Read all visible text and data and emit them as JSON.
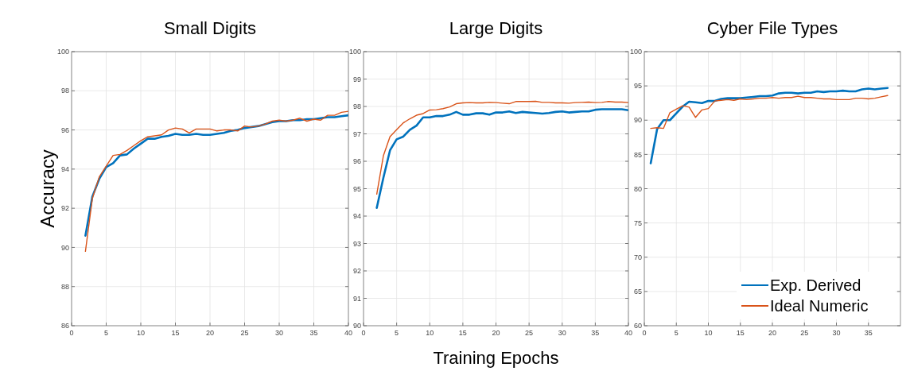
{
  "chart_data": [
    {
      "type": "line",
      "title": "Small Digits",
      "ylabel": "Accuracy",
      "xlim": [
        0,
        40
      ],
      "xticks": [
        0,
        5,
        10,
        15,
        20,
        25,
        30,
        35,
        40
      ],
      "ylim": [
        86,
        100
      ],
      "yticks": [
        86,
        88,
        90,
        92,
        94,
        96,
        98,
        100
      ],
      "grid": true,
      "x": [
        2,
        3,
        4,
        5,
        6,
        7,
        8,
        9,
        10,
        11,
        12,
        13,
        14,
        15,
        16,
        17,
        18,
        19,
        20,
        21,
        22,
        23,
        24,
        25,
        26,
        27,
        28,
        29,
        30,
        31,
        32,
        33,
        34,
        35,
        36,
        37,
        38,
        39,
        40
      ],
      "series": [
        {
          "color": "#0072bd",
          "values": [
            90.6,
            92.6,
            93.5,
            94.1,
            94.3,
            94.7,
            94.75,
            95.05,
            95.3,
            95.55,
            95.55,
            95.65,
            95.7,
            95.8,
            95.75,
            95.75,
            95.8,
            95.75,
            95.75,
            95.8,
            95.85,
            95.95,
            96.0,
            96.1,
            96.15,
            96.2,
            96.3,
            96.4,
            96.45,
            96.45,
            96.5,
            96.5,
            96.55,
            96.55,
            96.6,
            96.65,
            96.65,
            96.7,
            96.75
          ]
        },
        {
          "color": "#d95319",
          "values": [
            89.8,
            92.5,
            93.6,
            94.15,
            94.7,
            94.75,
            94.95,
            95.2,
            95.45,
            95.65,
            95.7,
            95.75,
            96.0,
            96.1,
            96.05,
            95.85,
            96.05,
            96.05,
            96.05,
            95.95,
            96.0,
            96.0,
            95.95,
            96.2,
            96.15,
            96.2,
            96.3,
            96.45,
            96.5,
            96.45,
            96.5,
            96.6,
            96.45,
            96.55,
            96.5,
            96.75,
            96.75,
            96.9,
            96.95
          ]
        }
      ]
    },
    {
      "type": "line",
      "title": "Large Digits",
      "xlabel": "Training Epochs",
      "xlim": [
        0,
        40
      ],
      "xticks": [
        0,
        5,
        10,
        15,
        20,
        25,
        30,
        35,
        40
      ],
      "ylim": [
        90,
        100
      ],
      "yticks": [
        90,
        91,
        92,
        93,
        94,
        95,
        96,
        97,
        98,
        99,
        100
      ],
      "grid": true,
      "x": [
        2,
        3,
        4,
        5,
        6,
        7,
        8,
        9,
        10,
        11,
        12,
        13,
        14,
        15,
        16,
        17,
        18,
        19,
        20,
        21,
        22,
        23,
        24,
        25,
        26,
        27,
        28,
        29,
        30,
        31,
        32,
        33,
        34,
        35,
        36,
        37,
        38,
        39,
        40
      ],
      "series": [
        {
          "color": "#0072bd",
          "values": [
            94.3,
            95.4,
            96.4,
            96.8,
            96.9,
            97.15,
            97.3,
            97.6,
            97.6,
            97.65,
            97.65,
            97.7,
            97.8,
            97.7,
            97.7,
            97.75,
            97.75,
            97.7,
            97.78,
            97.78,
            97.82,
            97.76,
            97.8,
            97.78,
            97.76,
            97.74,
            97.76,
            97.8,
            97.82,
            97.78,
            97.8,
            97.82,
            97.82,
            97.88,
            97.9,
            97.9,
            97.9,
            97.9,
            97.86
          ]
        },
        {
          "color": "#d95319",
          "values": [
            94.8,
            96.2,
            96.9,
            97.15,
            97.4,
            97.55,
            97.68,
            97.74,
            97.87,
            97.88,
            97.92,
            97.98,
            98.1,
            98.13,
            98.14,
            98.13,
            98.13,
            98.15,
            98.14,
            98.12,
            98.1,
            98.18,
            98.18,
            98.18,
            98.19,
            98.15,
            98.15,
            98.13,
            98.13,
            98.12,
            98.14,
            98.15,
            98.16,
            98.14,
            98.15,
            98.18,
            98.16,
            98.16,
            98.14
          ]
        }
      ]
    },
    {
      "type": "line",
      "title": "Cyber File Types",
      "xlim": [
        0,
        40
      ],
      "xticks": [
        0,
        5,
        10,
        15,
        20,
        25,
        30,
        35
      ],
      "ylim": [
        60,
        100
      ],
      "yticks": [
        60,
        65,
        70,
        75,
        80,
        85,
        90,
        95,
        100
      ],
      "grid": true,
      "legend": "bottom right",
      "x": [
        1,
        2,
        3,
        4,
        5,
        6,
        7,
        8,
        9,
        10,
        11,
        12,
        13,
        14,
        15,
        16,
        17,
        18,
        19,
        20,
        21,
        22,
        23,
        24,
        25,
        26,
        27,
        28,
        29,
        30,
        31,
        32,
        33,
        34,
        35,
        36,
        37,
        38
      ],
      "series": [
        {
          "name": "Exp. Derived",
          "color": "#0072bd",
          "values": [
            83.7,
            88.7,
            90.0,
            90.0,
            91.0,
            92.0,
            92.7,
            92.6,
            92.5,
            92.8,
            92.8,
            93.1,
            93.2,
            93.2,
            93.2,
            93.3,
            93.4,
            93.5,
            93.5,
            93.6,
            93.9,
            94.0,
            94.0,
            93.9,
            94.0,
            94.0,
            94.2,
            94.1,
            94.2,
            94.2,
            94.3,
            94.2,
            94.2,
            94.5,
            94.6,
            94.5,
            94.6,
            94.7
          ]
        },
        {
          "name": "Ideal Numeric",
          "color": "#d95319",
          "values": [
            88.8,
            88.9,
            88.8,
            91.1,
            91.6,
            92.1,
            91.9,
            90.4,
            91.5,
            91.7,
            92.8,
            92.9,
            93.0,
            92.9,
            93.1,
            93.0,
            93.1,
            93.2,
            93.2,
            93.3,
            93.2,
            93.3,
            93.3,
            93.5,
            93.3,
            93.3,
            93.2,
            93.1,
            93.1,
            93.0,
            93.0,
            93.0,
            93.2,
            93.2,
            93.1,
            93.2,
            93.4,
            93.6
          ]
        }
      ]
    }
  ]
}
